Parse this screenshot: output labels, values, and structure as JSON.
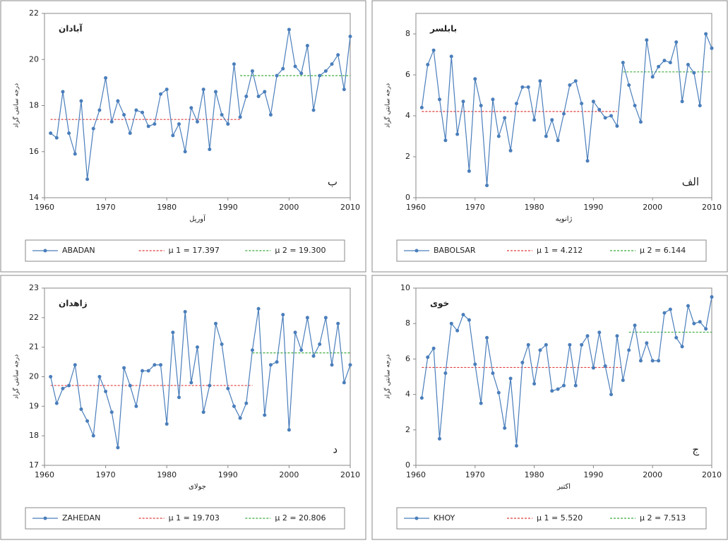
{
  "chart_data": [
    {
      "type": "line",
      "title": "آبادان",
      "panel_label": "ب",
      "x_label": "آوریل",
      "y_label": "درجه سانتی گراد",
      "x": [
        1961,
        1962,
        1963,
        1964,
        1965,
        1966,
        1967,
        1968,
        1969,
        1970,
        1971,
        1972,
        1973,
        1974,
        1975,
        1976,
        1977,
        1978,
        1979,
        1980,
        1981,
        1982,
        1983,
        1984,
        1985,
        1986,
        1987,
        1988,
        1989,
        1990,
        1991,
        1992,
        1993,
        1994,
        1995,
        1996,
        1997,
        1998,
        1999,
        2000,
        2001,
        2002,
        2003,
        2004,
        2005,
        2006,
        2007,
        2008,
        2009,
        2010
      ],
      "series": [
        {
          "name": "ABADAN",
          "color": "#4a7ebb",
          "values": [
            16.8,
            16.6,
            18.6,
            16.8,
            15.9,
            18.2,
            14.8,
            17.0,
            17.8,
            19.2,
            17.3,
            18.2,
            17.6,
            16.8,
            17.8,
            17.7,
            17.1,
            17.2,
            18.5,
            18.7,
            16.7,
            17.2,
            16.0,
            17.9,
            17.3,
            18.7,
            16.1,
            18.6,
            17.6,
            17.2,
            19.8,
            17.5,
            18.4,
            19.5,
            18.4,
            18.6,
            17.6,
            19.3,
            19.6,
            21.3,
            19.7,
            19.4,
            20.6,
            17.8,
            19.3,
            19.5,
            19.8,
            20.2,
            18.7,
            21.0
          ]
        }
      ],
      "mean_lines": [
        {
          "name": "μ 1 = 17.397",
          "color": "#e03c3c",
          "value": 17.397,
          "x": [
            1961,
            1992
          ]
        },
        {
          "name": "μ 2 = 19.300",
          "color": "#3caa3c",
          "value": 19.3,
          "x": [
            1992,
            2010
          ]
        }
      ],
      "xlim": [
        1960,
        2010
      ],
      "xticks": [
        1960,
        1970,
        1980,
        1990,
        2000,
        2010
      ],
      "ylim": [
        14,
        22
      ],
      "yticks": [
        14,
        16,
        18,
        20,
        22
      ]
    },
    {
      "type": "line",
      "title": "بابلسر",
      "panel_label": "الف",
      "x_label": "ژانویه",
      "y_label": "درجه سانتی گراد",
      "x": [
        1961,
        1962,
        1963,
        1964,
        1965,
        1966,
        1967,
        1968,
        1969,
        1970,
        1971,
        1972,
        1973,
        1974,
        1975,
        1976,
        1977,
        1978,
        1979,
        1980,
        1981,
        1982,
        1983,
        1984,
        1985,
        1986,
        1987,
        1988,
        1989,
        1990,
        1991,
        1992,
        1993,
        1994,
        1995,
        1996,
        1997,
        1998,
        1999,
        2000,
        2001,
        2002,
        2003,
        2004,
        2005,
        2006,
        2007,
        2008,
        2009,
        2010
      ],
      "series": [
        {
          "name": "BABOLSAR",
          "color": "#4a7ebb",
          "values": [
            4.4,
            6.5,
            7.2,
            4.8,
            2.8,
            6.9,
            3.1,
            4.7,
            1.3,
            5.8,
            4.5,
            0.6,
            4.8,
            3.0,
            3.9,
            2.3,
            4.6,
            5.4,
            5.4,
            3.8,
            5.7,
            3.0,
            3.8,
            2.8,
            4.1,
            5.5,
            5.7,
            4.6,
            1.8,
            4.7,
            4.3,
            3.9,
            4.0,
            3.5,
            6.6,
            5.5,
            4.5,
            3.7,
            7.7,
            5.9,
            6.4,
            6.7,
            6.6,
            7.6,
            4.7,
            6.5,
            6.1,
            4.5,
            8.0,
            7.3
          ]
        }
      ],
      "mean_lines": [
        {
          "name": "μ 1 = 4.212",
          "color": "#e03c3c",
          "value": 4.212,
          "x": [
            1961,
            1994
          ]
        },
        {
          "name": "μ 2 = 6.144",
          "color": "#3caa3c",
          "value": 6.144,
          "x": [
            1995,
            2010
          ]
        }
      ],
      "xlim": [
        1960,
        2010
      ],
      "xticks": [
        1960,
        1970,
        1980,
        1990,
        2000,
        2010
      ],
      "ylim": [
        0,
        9
      ],
      "yticks": [
        0,
        2,
        4,
        6,
        8
      ]
    },
    {
      "type": "line",
      "title": "زاهدان",
      "panel_label": "د",
      "x_label": "جولای",
      "y_label": "درجه سانتی گراد",
      "x": [
        1961,
        1962,
        1963,
        1964,
        1965,
        1966,
        1967,
        1968,
        1969,
        1970,
        1971,
        1972,
        1973,
        1974,
        1975,
        1976,
        1977,
        1978,
        1979,
        1980,
        1981,
        1982,
        1983,
        1984,
        1985,
        1986,
        1987,
        1988,
        1989,
        1990,
        1991,
        1992,
        1993,
        1994,
        1995,
        1996,
        1997,
        1998,
        1999,
        2000,
        2001,
        2002,
        2003,
        2004,
        2005,
        2006,
        2007,
        2008,
        2009,
        2010
      ],
      "series": [
        {
          "name": "ZAHEDAN",
          "color": "#4a7ebb",
          "values": [
            20.0,
            19.1,
            19.6,
            19.7,
            20.4,
            18.9,
            18.5,
            18.0,
            20.0,
            19.5,
            18.8,
            17.6,
            20.3,
            19.7,
            19.0,
            20.2,
            20.2,
            20.4,
            20.4,
            18.4,
            21.5,
            19.3,
            22.2,
            19.8,
            21.0,
            18.8,
            19.7,
            21.8,
            21.1,
            19.6,
            19.0,
            18.6,
            19.1,
            20.9,
            22.3,
            18.7,
            20.4,
            20.5,
            22.1,
            18.2,
            21.5,
            20.9,
            22.0,
            20.7,
            21.1,
            22.0,
            20.4,
            21.8,
            19.8,
            20.4
          ]
        }
      ],
      "mean_lines": [
        {
          "name": "μ 1 = 19.703",
          "color": "#e03c3c",
          "value": 19.703,
          "x": [
            1961,
            1994
          ]
        },
        {
          "name": "μ 2 = 20.806",
          "color": "#3caa3c",
          "value": 20.806,
          "x": [
            1994,
            2010
          ]
        }
      ],
      "xlim": [
        1960,
        2010
      ],
      "xticks": [
        1960,
        1970,
        1980,
        1990,
        2000,
        2010
      ],
      "ylim": [
        17,
        23
      ],
      "yticks": [
        17,
        18,
        19,
        20,
        21,
        22,
        23
      ]
    },
    {
      "type": "line",
      "title": "خوی",
      "panel_label": "ج",
      "x_label": "اکتبر",
      "y_label": "درجه سانتی گراد",
      "x": [
        1961,
        1962,
        1963,
        1964,
        1965,
        1966,
        1967,
        1968,
        1969,
        1970,
        1971,
        1972,
        1973,
        1974,
        1975,
        1976,
        1977,
        1978,
        1979,
        1980,
        1981,
        1982,
        1983,
        1984,
        1985,
        1986,
        1987,
        1988,
        1989,
        1990,
        1991,
        1992,
        1993,
        1994,
        1995,
        1996,
        1997,
        1998,
        1999,
        2000,
        2001,
        2002,
        2003,
        2004,
        2005,
        2006,
        2007,
        2008,
        2009,
        2010
      ],
      "series": [
        {
          "name": "KHOY",
          "color": "#4a7ebb",
          "values": [
            3.8,
            6.1,
            6.6,
            1.5,
            5.2,
            8.0,
            7.6,
            8.5,
            8.2,
            5.7,
            3.5,
            7.2,
            5.2,
            4.1,
            2.1,
            4.9,
            1.1,
            5.8,
            6.8,
            4.6,
            6.5,
            6.8,
            4.2,
            4.3,
            4.5,
            6.8,
            4.5,
            6.8,
            7.3,
            5.5,
            7.5,
            5.6,
            4.0,
            7.3,
            4.8,
            6.5,
            7.9,
            5.9,
            6.9,
            5.9,
            5.9,
            8.6,
            8.8,
            7.2,
            6.7,
            9.0,
            8.0,
            8.1,
            7.7,
            9.5
          ]
        }
      ],
      "mean_lines": [
        {
          "name": "μ 1 = 5.520",
          "color": "#e03c3c",
          "value": 5.52,
          "x": [
            1961,
            1995
          ]
        },
        {
          "name": "μ 2 = 7.513",
          "color": "#3caa3c",
          "value": 7.513,
          "x": [
            1996,
            2010
          ]
        }
      ],
      "xlim": [
        1960,
        2010
      ],
      "xticks": [
        1960,
        1970,
        1980,
        1990,
        2000,
        2010
      ],
      "ylim": [
        0,
        10
      ],
      "yticks": [
        0,
        2,
        4,
        6,
        8,
        10
      ]
    }
  ]
}
